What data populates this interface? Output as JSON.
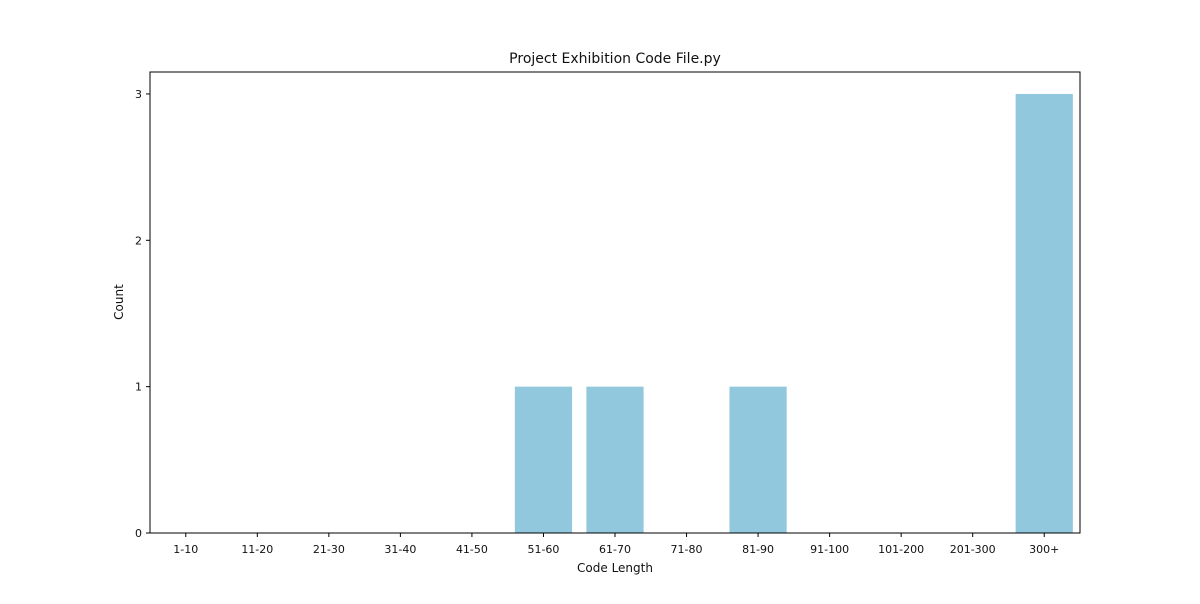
{
  "chart_data": {
    "type": "bar",
    "title": "Project Exhibition Code File.py",
    "xlabel": "Code Length",
    "ylabel": "Count",
    "categories": [
      "1-10",
      "11-20",
      "21-30",
      "31-40",
      "41-50",
      "51-60",
      "61-70",
      "71-80",
      "81-90",
      "91-100",
      "101-200",
      "201-300",
      "300+"
    ],
    "values": [
      0,
      0,
      0,
      0,
      0,
      1,
      1,
      0,
      1,
      0,
      0,
      0,
      3
    ],
    "ylim": [
      0,
      3.15
    ],
    "yticks": [
      0,
      1,
      2,
      3
    ],
    "bar_color": "#92c8dd",
    "grid": false,
    "legend": false
  }
}
